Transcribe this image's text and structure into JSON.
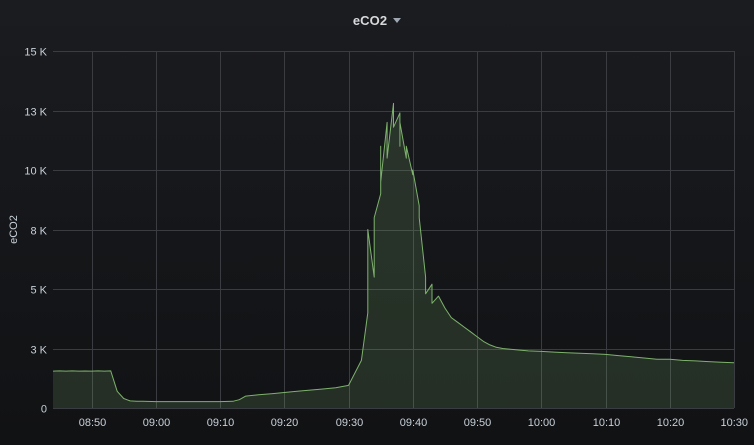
{
  "panel": {
    "title": "eCO2",
    "menu_icon": "caret-down-icon"
  },
  "colors": {
    "background": "#141619",
    "line": "#7eb26d",
    "fill": "#2a3527",
    "grid": "#3a3c41",
    "text": "#c7d0d9"
  },
  "chart_data": {
    "type": "area",
    "title": "eCO2",
    "xlabel": "",
    "ylabel": "eCO2",
    "grid": true,
    "legend": "none",
    "x_range": [
      "08:44",
      "10:30"
    ],
    "ylim": [
      0,
      15000
    ],
    "x_ticks": [
      "08:50",
      "09:00",
      "09:10",
      "09:20",
      "09:30",
      "09:40",
      "09:50",
      "10:00",
      "10:10",
      "10:20",
      "10:30"
    ],
    "y_ticks": [
      {
        "value": 0,
        "label": "0"
      },
      {
        "value": 2500,
        "label": "3 K"
      },
      {
        "value": 5000,
        "label": "5 K"
      },
      {
        "value": 7500,
        "label": "8 K"
      },
      {
        "value": 10000,
        "label": "10 K"
      },
      {
        "value": 12500,
        "label": "13 K"
      },
      {
        "value": 15000,
        "label": "15 K"
      }
    ],
    "series": [
      {
        "x": [
          "08:44",
          "08:45",
          "08:46",
          "08:47",
          "08:48",
          "08:49",
          "08:50",
          "08:51",
          "08:52",
          "08:53",
          "08:53",
          "08:54",
          "08:55",
          "08:56",
          "08:57",
          "08:58",
          "09:00",
          "09:02",
          "09:04",
          "09:06",
          "09:08",
          "09:10",
          "09:12",
          "09:13",
          "09:14",
          "09:16",
          "09:18",
          "09:20",
          "09:22",
          "09:24",
          "09:26",
          "09:28",
          "09:30",
          "09:32",
          "09:33",
          "09:33",
          "09:34",
          "09:34",
          "09:35",
          "09:35",
          "09:35",
          "09:36",
          "09:36",
          "09:36",
          "09:37",
          "09:37",
          "09:38",
          "09:38",
          "09:38",
          "09:39",
          "09:39",
          "09:40",
          "09:40",
          "09:41",
          "09:41",
          "09:42",
          "09:42",
          "09:43",
          "09:43",
          "09:44",
          "09:45",
          "09:46",
          "09:47",
          "09:48",
          "09:49",
          "09:50",
          "09:51",
          "09:52",
          "09:53",
          "09:54",
          "09:56",
          "09:58",
          "10:00",
          "10:02",
          "10:04",
          "10:06",
          "10:08",
          "10:10",
          "10:12",
          "10:14",
          "10:16",
          "10:18",
          "10:20",
          "10:22",
          "10:24",
          "10:26",
          "10:28",
          "10:30"
        ],
        "values": [
          1550,
          1560,
          1550,
          1560,
          1550,
          1555,
          1550,
          1560,
          1550,
          1560,
          1550,
          700,
          400,
          300,
          280,
          280,
          270,
          270,
          270,
          270,
          270,
          270,
          280,
          350,
          500,
          560,
          600,
          650,
          700,
          750,
          800,
          850,
          950,
          2000,
          4000,
          7500,
          5500,
          8000,
          9000,
          11000,
          9500,
          12000,
          11500,
          10500,
          12800,
          11800,
          12400,
          11000,
          12000,
          10500,
          11000,
          9800,
          10000,
          8500,
          8000,
          5500,
          4800,
          5200,
          4400,
          4700,
          4200,
          3800,
          3600,
          3400,
          3200,
          3000,
          2800,
          2650,
          2550,
          2500,
          2450,
          2400,
          2380,
          2350,
          2320,
          2300,
          2280,
          2250,
          2200,
          2150,
          2100,
          2050,
          2050,
          2000,
          1980,
          1950,
          1920,
          1900
        ]
      }
    ]
  }
}
